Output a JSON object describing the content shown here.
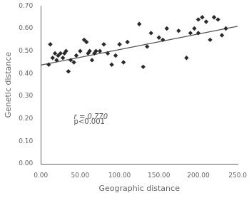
{
  "chart_data": {
    "type": "scatter",
    "xlabel": "Geographic distance",
    "ylabel": "Genetic distance",
    "series": [
      {
        "type": "scatter",
        "color": "#2a2a2a",
        "marker": "diamond",
        "x": [
          10,
          12,
          15,
          18,
          20,
          22,
          25,
          28,
          30,
          32,
          35,
          38,
          42,
          45,
          50,
          55,
          58,
          60,
          62,
          65,
          68,
          70,
          75,
          80,
          85,
          90,
          95,
          100,
          105,
          110,
          125,
          130,
          135,
          140,
          150,
          155,
          160,
          175,
          185,
          190,
          195,
          200,
          200,
          205,
          210,
          215,
          220,
          225,
          230,
          235
        ],
        "values": [
          0.44,
          0.53,
          0.47,
          0.49,
          0.46,
          0.48,
          0.49,
          0.47,
          0.49,
          0.5,
          0.41,
          0.46,
          0.45,
          0.48,
          0.5,
          0.55,
          0.54,
          0.49,
          0.5,
          0.46,
          0.49,
          0.5,
          0.5,
          0.53,
          0.49,
          0.44,
          0.48,
          0.53,
          0.45,
          0.54,
          0.62,
          0.43,
          0.52,
          0.58,
          0.56,
          0.55,
          0.6,
          0.59,
          0.47,
          0.58,
          0.6,
          0.64,
          0.58,
          0.65,
          0.63,
          0.55,
          0.65,
          0.64,
          0.57,
          0.6
        ]
      },
      {
        "type": "line",
        "color": "#555555",
        "line_style": "solid",
        "x": [
          0,
          250
        ],
        "values": [
          0.438,
          0.61
        ]
      }
    ],
    "xlim": [
      0,
      250
    ],
    "xticks": [
      {
        "value": 0,
        "label": "0.00"
      },
      {
        "value": 50,
        "label": "50.00"
      },
      {
        "value": 100,
        "label": "100.00"
      },
      {
        "value": 150,
        "label": "150.00"
      },
      {
        "value": 200,
        "label": "200.00"
      },
      {
        "value": 250,
        "label": "250.0"
      }
    ],
    "ylim": [
      0.0,
      0.7
    ],
    "yticks": [
      {
        "value": 0.0,
        "label": "0.00"
      },
      {
        "value": 0.1,
        "label": "0.10"
      },
      {
        "value": 0.2,
        "label": "0.20"
      },
      {
        "value": 0.3,
        "label": "0.30"
      },
      {
        "value": 0.4,
        "label": "0.40"
      },
      {
        "value": 0.5,
        "label": "0.50"
      },
      {
        "value": 0.6,
        "label": "0.60"
      },
      {
        "value": 0.7,
        "label": "0.70"
      }
    ],
    "annotations": [
      {
        "text": "r = 0.770",
        "x": 42,
        "y": 0.2
      },
      {
        "text": "p<0.001",
        "x": 42,
        "y": 0.178
      }
    ],
    "grid": false
  }
}
